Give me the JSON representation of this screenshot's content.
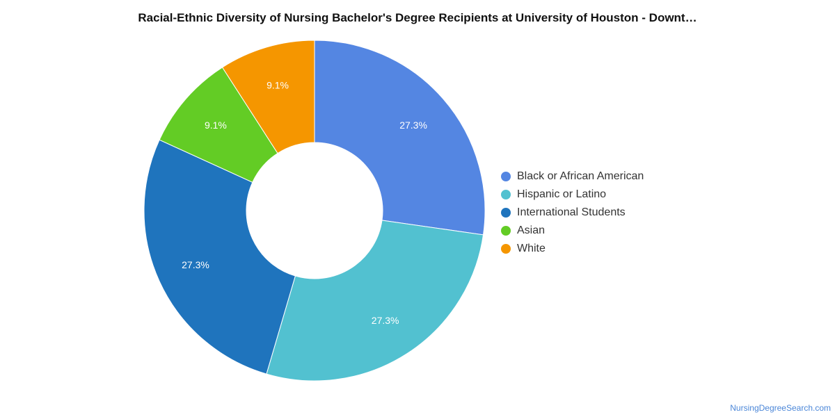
{
  "chart_data": {
    "type": "pie",
    "title": "Racial-Ethnic Diversity of Nursing Bachelor's Degree Recipients at University of Houston - Downt…",
    "donut": true,
    "legend_position": "right",
    "labels": [
      "Black or African American",
      "Hispanic or Latino",
      "International Students",
      "Asian",
      "White"
    ],
    "values": [
      27.3,
      27.3,
      27.3,
      9.1,
      9.1
    ],
    "value_labels": [
      "27.3%",
      "27.3%",
      "27.3%",
      "9.1%",
      "9.1%"
    ],
    "colors": [
      "#5486e2",
      "#52c1d0",
      "#1f74bd",
      "#63cc25",
      "#f59600"
    ]
  },
  "watermark": "NursingDegreeSearch.com"
}
